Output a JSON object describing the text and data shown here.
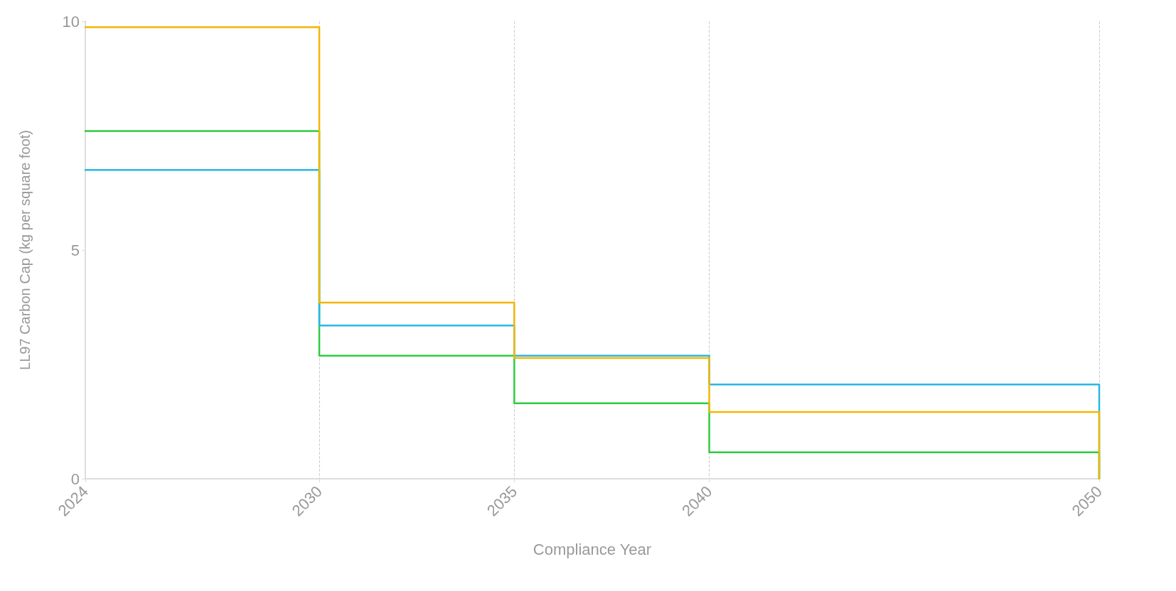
{
  "chart_data": {
    "type": "step",
    "xlabel": "Compliance Year",
    "ylabel": "LL97 Carbon Cap (kg per square foot)",
    "x": [
      2024,
      2030,
      2035,
      2040,
      2050
    ],
    "series": [
      {
        "color": "#2ecc40",
        "values": [
          7.6,
          2.69,
          1.65,
          0.58,
          0
        ]
      },
      {
        "color": "#29b6e6",
        "values": [
          6.75,
          3.35,
          2.69,
          2.06,
          0
        ]
      },
      {
        "color": "#f2b705",
        "values": [
          9.87,
          3.85,
          2.64,
          1.46,
          0
        ]
      }
    ],
    "xlim": [
      2024,
      2050
    ],
    "xticks": [
      2024,
      2030,
      2035,
      2040,
      2050
    ],
    "ylim": [
      0,
      10
    ],
    "yticks": [
      0,
      5,
      10
    ],
    "grid": "x",
    "marker": "none",
    "line_style": "solid"
  }
}
